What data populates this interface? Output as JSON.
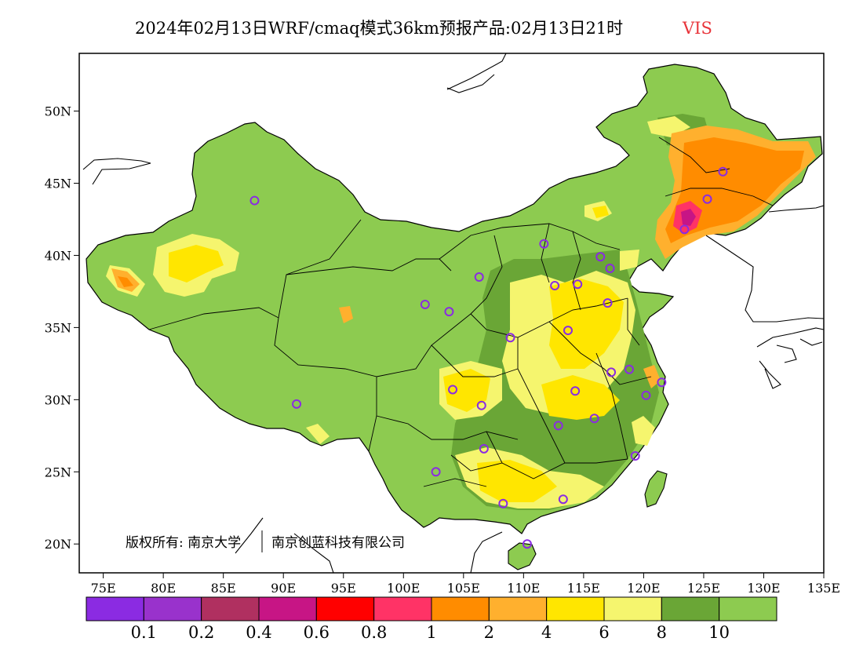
{
  "header": {
    "title": "2024年02月13日WRF/cmaq模式36km预报产品:02月13日21时",
    "variable": "VIS"
  },
  "map": {
    "lon_range": [
      73,
      135
    ],
    "lat_range": [
      18,
      54
    ],
    "lon_ticks": [
      "75E",
      "80E",
      "85E",
      "90E",
      "95E",
      "100E",
      "105E",
      "110E",
      "115E",
      "120E",
      "125E",
      "130E",
      "135E"
    ],
    "lat_ticks": [
      "20N",
      "25N",
      "30N",
      "35N",
      "40N",
      "45N",
      "50N"
    ],
    "land_color": "#8dcb50",
    "copyright_left": "版权所有: 南京大学",
    "copyright_right": "南京创蓝科技有限公司",
    "stations": [
      [
        87.6,
        43.8
      ],
      [
        91.1,
        29.7
      ],
      [
        101.8,
        36.6
      ],
      [
        103.8,
        36.1
      ],
      [
        106.3,
        38.5
      ],
      [
        104.1,
        30.7
      ],
      [
        106.5,
        29.6
      ],
      [
        106.7,
        26.6
      ],
      [
        102.7,
        25.0
      ],
      [
        108.3,
        22.8
      ],
      [
        108.9,
        34.3
      ],
      [
        111.7,
        40.8
      ],
      [
        112.6,
        37.9
      ],
      [
        114.5,
        38.0
      ],
      [
        116.4,
        39.9
      ],
      [
        117.2,
        39.1
      ],
      [
        117.0,
        36.7
      ],
      [
        113.7,
        34.8
      ],
      [
        114.3,
        30.6
      ],
      [
        112.9,
        28.2
      ],
      [
        115.9,
        28.7
      ],
      [
        117.3,
        31.9
      ],
      [
        118.8,
        32.1
      ],
      [
        120.2,
        30.3
      ],
      [
        121.5,
        31.2
      ],
      [
        119.3,
        26.1
      ],
      [
        113.3,
        23.1
      ],
      [
        110.3,
        20.0
      ],
      [
        123.4,
        41.8
      ],
      [
        125.3,
        43.9
      ],
      [
        126.6,
        45.8
      ]
    ]
  },
  "colorbar": {
    "colors": [
      "#8b2be2",
      "#9932cc",
      "#b03060",
      "#c71585",
      "#ff0000",
      "#ff3366",
      "#ff8c00",
      "#ffb02e",
      "#ffe600",
      "#f5f56e",
      "#6aa636",
      "#8dcb50"
    ],
    "labels": [
      "0.1",
      "0.2",
      "0.4",
      "0.6",
      "0.8",
      "1",
      "2",
      "4",
      "6",
      "8",
      "10"
    ]
  }
}
